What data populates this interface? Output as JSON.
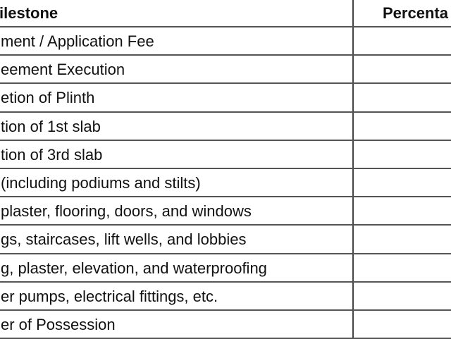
{
  "table": {
    "headers": [
      "ilestone",
      "Percenta"
    ],
    "rows": [
      "ment / Application Fee",
      "eement Execution",
      "etion of Plinth",
      "tion of 1st slab",
      "tion of 3rd slab",
      " (including podiums and stilts)",
      "plaster, flooring, doors, and windows",
      "gs, staircases, lift wells, and lobbies",
      "g, plaster, elevation, and waterproofing",
      "er pumps, electrical fittings, etc.",
      "er of Possession"
    ],
    "percentages": [
      "",
      "",
      "",
      "",
      "",
      "",
      "",
      "",
      "",
      "",
      ""
    ]
  }
}
